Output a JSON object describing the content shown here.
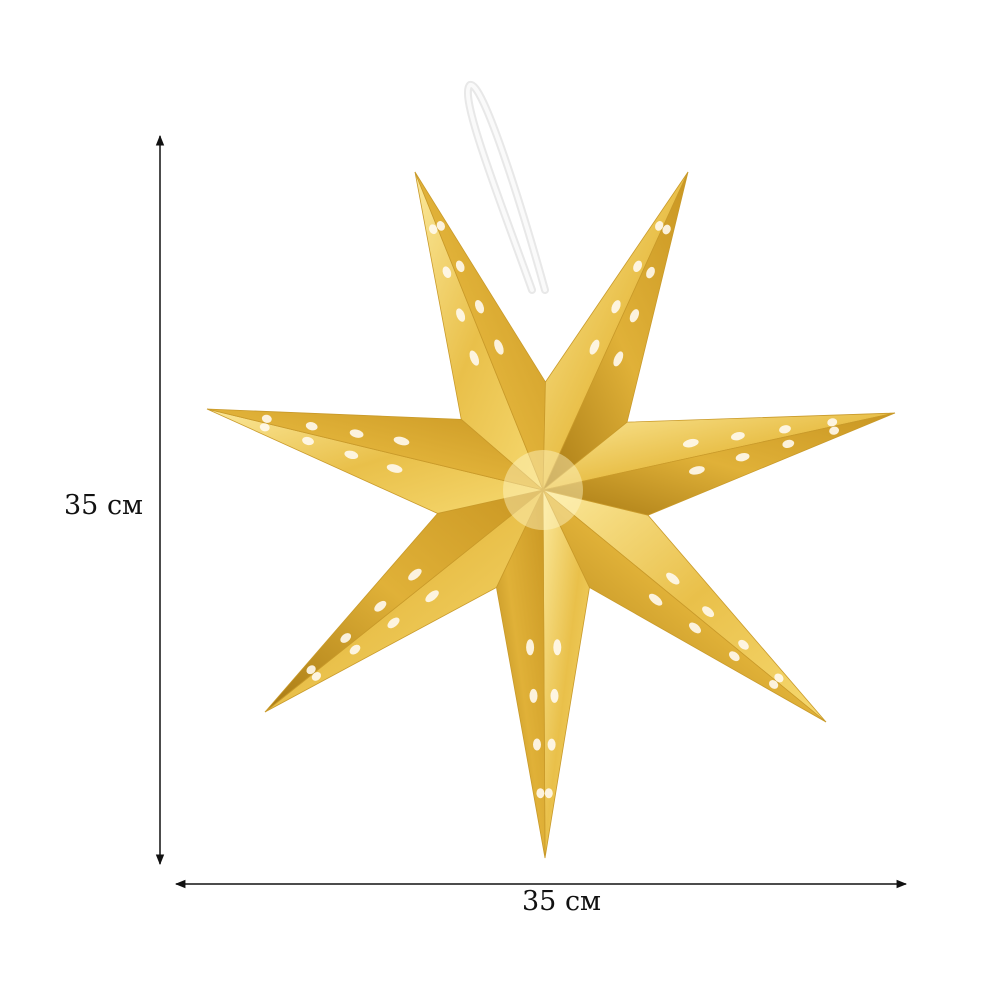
{
  "dimensions": {
    "height_label": "35 см",
    "width_label": "35 см"
  },
  "product": {
    "points": 7,
    "colors": {
      "gold_light": "#f7dd7a",
      "gold_mid": "#e3b93a",
      "gold_dark": "#b98a1c",
      "cutout": "#ffffff",
      "cord": "#f2f2f2"
    }
  }
}
